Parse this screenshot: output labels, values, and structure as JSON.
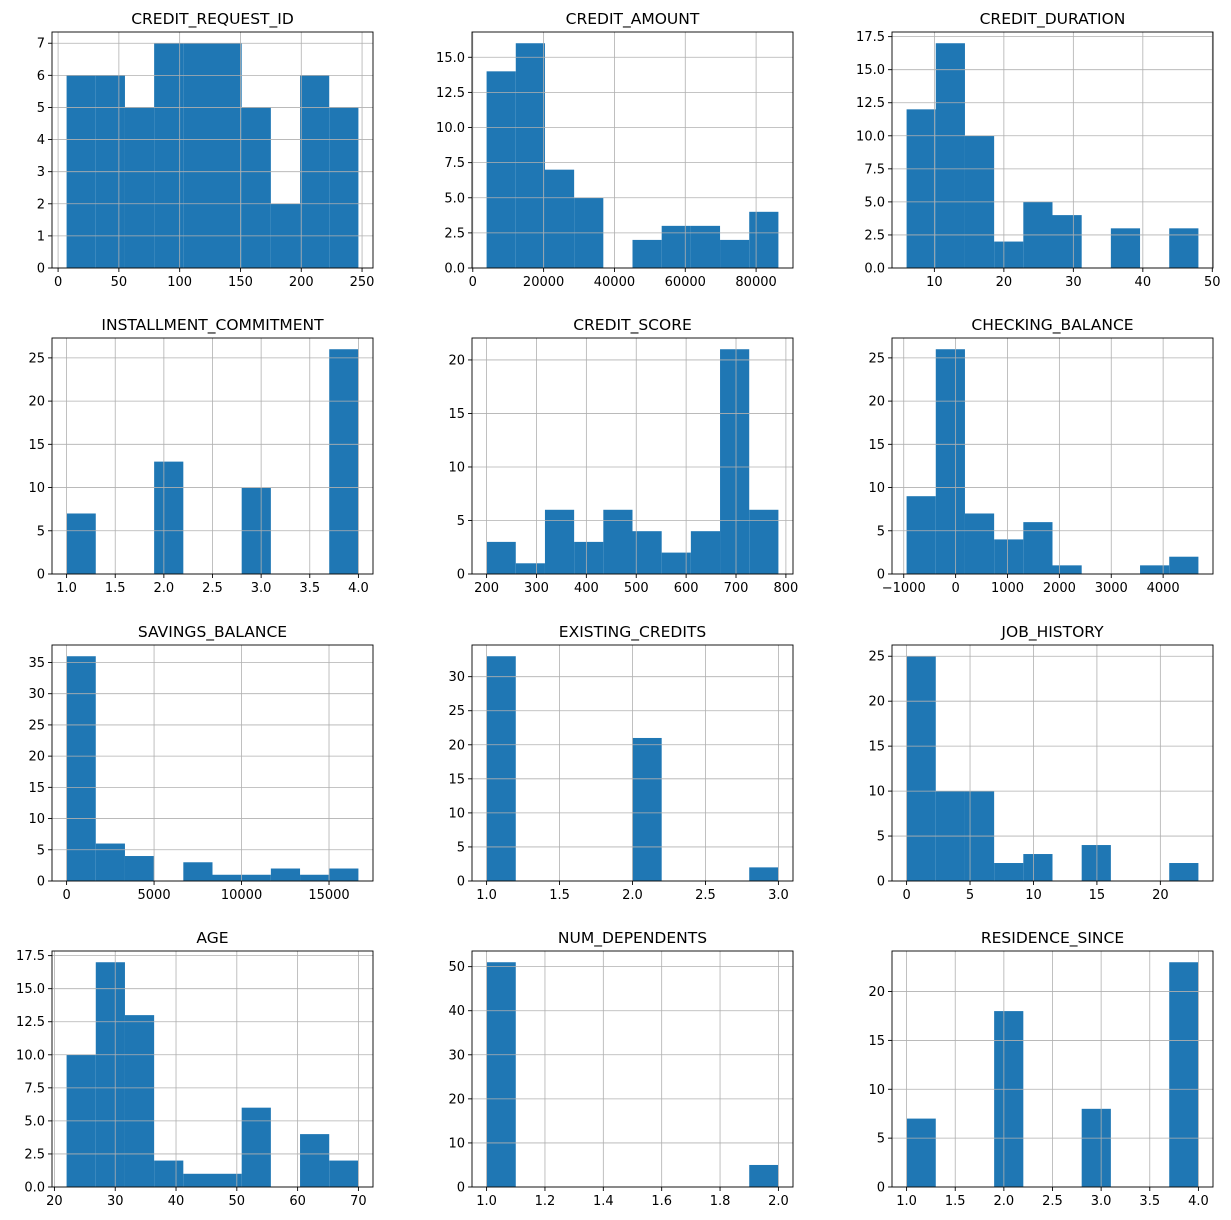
{
  "chart_data": [
    {
      "type": "bar",
      "subtype": "histogram",
      "title": "CREDIT_REQUEST_ID",
      "bin_range": [
        7,
        247
      ],
      "counts": [
        6,
        6,
        5,
        7,
        7,
        7,
        5,
        2,
        6,
        5
      ],
      "xticks": [
        0,
        50,
        100,
        150,
        200,
        250
      ],
      "xtick_labels": [
        "0",
        "50",
        "100",
        "150",
        "200",
        "250"
      ],
      "yticks": [
        0,
        1,
        2,
        3,
        4,
        5,
        6,
        7
      ],
      "ytick_labels": [
        "0",
        "1",
        "2",
        "3",
        "4",
        "5",
        "6",
        "7"
      ],
      "grid": true,
      "color": "#1f77b4"
    },
    {
      "type": "bar",
      "subtype": "histogram",
      "title": "CREDIT_AMOUNT",
      "bin_range": [
        3900,
        86300
      ],
      "counts": [
        14,
        16,
        7,
        5,
        0,
        2,
        3,
        3,
        2,
        4
      ],
      "xticks": [
        0,
        20000,
        40000,
        60000,
        80000
      ],
      "xtick_labels": [
        "0",
        "20000",
        "40000",
        "60000",
        "80000"
      ],
      "yticks": [
        0,
        2.5,
        5,
        7.5,
        10,
        12.5,
        15
      ],
      "ytick_labels": [
        "0.0",
        "2.5",
        "5.0",
        "7.5",
        "10.0",
        "12.5",
        "15.0"
      ],
      "grid": true,
      "color": "#1f77b4"
    },
    {
      "type": "bar",
      "subtype": "histogram",
      "title": "CREDIT_DURATION",
      "bin_range": [
        6,
        48
      ],
      "counts": [
        12,
        17,
        10,
        2,
        5,
        4,
        0,
        3,
        0,
        3
      ],
      "xticks": [
        10,
        20,
        30,
        40,
        50
      ],
      "xtick_labels": [
        "10",
        "20",
        "30",
        "40",
        "50"
      ],
      "yticks": [
        0,
        2.5,
        5,
        7.5,
        10,
        12.5,
        15,
        17.5
      ],
      "ytick_labels": [
        "0.0",
        "2.5",
        "5.0",
        "7.5",
        "10.0",
        "12.5",
        "15.0",
        "17.5"
      ],
      "grid": true,
      "color": "#1f77b4"
    },
    {
      "type": "bar",
      "subtype": "histogram",
      "title": "INSTALLMENT_COMMITMENT",
      "bin_range": [
        1,
        4
      ],
      "counts": [
        7,
        0,
        0,
        13,
        0,
        0,
        10,
        0,
        0,
        26
      ],
      "xticks": [
        1,
        1.5,
        2,
        2.5,
        3,
        3.5,
        4
      ],
      "xtick_labels": [
        "1.0",
        "1.5",
        "2.0",
        "2.5",
        "3.0",
        "3.5",
        "4.0"
      ],
      "yticks": [
        0,
        5,
        10,
        15,
        20,
        25
      ],
      "ytick_labels": [
        "0",
        "5",
        "10",
        "15",
        "20",
        "25"
      ],
      "grid": true,
      "color": "#1f77b4"
    },
    {
      "type": "bar",
      "subtype": "histogram",
      "title": "CREDIT_SCORE",
      "bin_range": [
        200,
        785
      ],
      "counts": [
        3,
        1,
        6,
        3,
        6,
        4,
        2,
        4,
        21,
        6
      ],
      "xticks": [
        200,
        300,
        400,
        500,
        600,
        700,
        800
      ],
      "xtick_labels": [
        "200",
        "300",
        "400",
        "500",
        "600",
        "700",
        "800"
      ],
      "yticks": [
        0,
        5,
        10,
        15,
        20
      ],
      "ytick_labels": [
        "0",
        "5",
        "10",
        "15",
        "20"
      ],
      "grid": true,
      "color": "#1f77b4"
    },
    {
      "type": "bar",
      "subtype": "histogram",
      "title": "CHECKING_BALANCE",
      "bin_range": [
        -945,
        4680
      ],
      "counts": [
        9,
        26,
        7,
        4,
        6,
        1,
        0,
        0,
        1,
        2
      ],
      "xticks": [
        -1000,
        0,
        1000,
        2000,
        3000,
        4000
      ],
      "xtick_labels": [
        "−1000",
        "0",
        "1000",
        "2000",
        "3000",
        "4000"
      ],
      "yticks": [
        0,
        5,
        10,
        15,
        20,
        25
      ],
      "ytick_labels": [
        "0",
        "5",
        "10",
        "15",
        "20",
        "25"
      ],
      "grid": true,
      "color": "#1f77b4"
    },
    {
      "type": "bar",
      "subtype": "histogram",
      "title": "SAVINGS_BALANCE",
      "bin_range": [
        0,
        16680
      ],
      "counts": [
        36,
        6,
        4,
        0,
        3,
        1,
        1,
        2,
        1,
        2
      ],
      "xticks": [
        0,
        5000,
        10000,
        15000
      ],
      "xtick_labels": [
        "0",
        "5000",
        "10000",
        "15000"
      ],
      "yticks": [
        0,
        5,
        10,
        15,
        20,
        25,
        30,
        35
      ],
      "ytick_labels": [
        "0",
        "5",
        "10",
        "15",
        "20",
        "25",
        "30",
        "35"
      ],
      "grid": true,
      "color": "#1f77b4"
    },
    {
      "type": "bar",
      "subtype": "histogram",
      "title": "EXISTING_CREDITS",
      "bin_range": [
        1,
        3
      ],
      "counts": [
        33,
        0,
        0,
        0,
        0,
        21,
        0,
        0,
        0,
        2
      ],
      "xticks": [
        1,
        1.5,
        2,
        2.5,
        3
      ],
      "xtick_labels": [
        "1.0",
        "1.5",
        "2.0",
        "2.5",
        "3.0"
      ],
      "yticks": [
        0,
        5,
        10,
        15,
        20,
        25,
        30
      ],
      "ytick_labels": [
        "0",
        "5",
        "10",
        "15",
        "20",
        "25",
        "30"
      ],
      "grid": true,
      "color": "#1f77b4"
    },
    {
      "type": "bar",
      "subtype": "histogram",
      "title": "JOB_HISTORY",
      "bin_range": [
        0,
        23
      ],
      "counts": [
        25,
        10,
        10,
        2,
        3,
        0,
        4,
        0,
        0,
        2
      ],
      "xticks": [
        0,
        5,
        10,
        15,
        20
      ],
      "xtick_labels": [
        "0",
        "5",
        "10",
        "15",
        "20"
      ],
      "yticks": [
        0,
        5,
        10,
        15,
        20,
        25
      ],
      "ytick_labels": [
        "0",
        "5",
        "10",
        "15",
        "20",
        "25"
      ],
      "grid": true,
      "color": "#1f77b4"
    },
    {
      "type": "bar",
      "subtype": "histogram",
      "title": "AGE",
      "bin_range": [
        22,
        70
      ],
      "counts": [
        10,
        17,
        13,
        2,
        1,
        1,
        6,
        0,
        4,
        2
      ],
      "xticks": [
        20,
        30,
        40,
        50,
        60,
        70
      ],
      "xtick_labels": [
        "20",
        "30",
        "40",
        "50",
        "60",
        "70"
      ],
      "yticks": [
        0,
        2.5,
        5,
        7.5,
        10,
        12.5,
        15,
        17.5
      ],
      "ytick_labels": [
        "0.0",
        "2.5",
        "5.0",
        "7.5",
        "10.0",
        "12.5",
        "15.0",
        "17.5"
      ],
      "grid": true,
      "color": "#1f77b4"
    },
    {
      "type": "bar",
      "subtype": "histogram",
      "title": "NUM_DEPENDENTS",
      "bin_range": [
        1,
        2
      ],
      "counts": [
        51,
        0,
        0,
        0,
        0,
        0,
        0,
        0,
        0,
        5
      ],
      "xticks": [
        1,
        1.2,
        1.4,
        1.6,
        1.8,
        2
      ],
      "xtick_labels": [
        "1.0",
        "1.2",
        "1.4",
        "1.6",
        "1.8",
        "2.0"
      ],
      "yticks": [
        0,
        10,
        20,
        30,
        40,
        50
      ],
      "ytick_labels": [
        "0",
        "10",
        "20",
        "30",
        "40",
        "50"
      ],
      "grid": true,
      "color": "#1f77b4"
    },
    {
      "type": "bar",
      "subtype": "histogram",
      "title": "RESIDENCE_SINCE",
      "bin_range": [
        1,
        4
      ],
      "counts": [
        7,
        0,
        0,
        18,
        0,
        0,
        8,
        0,
        0,
        23
      ],
      "xticks": [
        1,
        1.5,
        2,
        2.5,
        3,
        3.5,
        4
      ],
      "xtick_labels": [
        "1.0",
        "1.5",
        "2.0",
        "2.5",
        "3.0",
        "3.5",
        "4.0"
      ],
      "yticks": [
        0,
        5,
        10,
        15,
        20
      ],
      "ytick_labels": [
        "0",
        "5",
        "10",
        "15",
        "20"
      ],
      "grid": true,
      "color": "#1f77b4"
    }
  ]
}
